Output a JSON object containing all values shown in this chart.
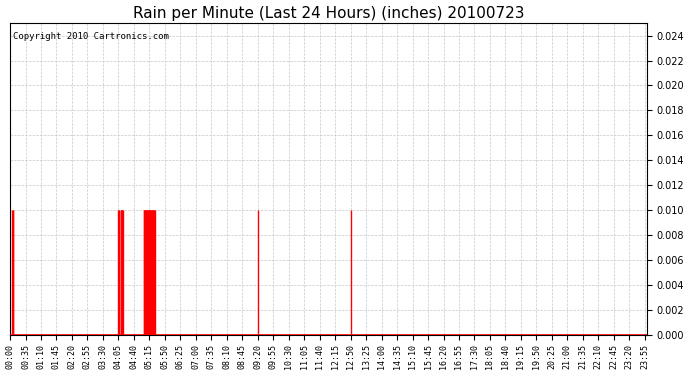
{
  "title": "Rain per Minute (Last 24 Hours) (inches) 20100723",
  "copyright_text": "Copyright 2010 Cartronics.com",
  "bar_color": "#ff0000",
  "background_color": "#ffffff",
  "plot_bg_color": "#ffffff",
  "grid_color": "#c8c8c8",
  "ylim": [
    0.0,
    0.025
  ],
  "yticks": [
    0.0,
    0.002,
    0.004,
    0.006,
    0.008,
    0.01,
    0.012,
    0.014,
    0.016,
    0.018,
    0.02,
    0.022,
    0.024
  ],
  "title_fontsize": 11,
  "tick_fontsize": 6,
  "rain_times": [
    5,
    6,
    7,
    245,
    246,
    247,
    250,
    251,
    252,
    253,
    254,
    255,
    302,
    303,
    304,
    305,
    306,
    307,
    308,
    309,
    310,
    311,
    312,
    313,
    314,
    315,
    316,
    317,
    318,
    319,
    320,
    321,
    322,
    323,
    324,
    325,
    326,
    327,
    560,
    770
  ],
  "rain_value": 0.01,
  "total_minutes": 1440,
  "x_tick_step": 35
}
